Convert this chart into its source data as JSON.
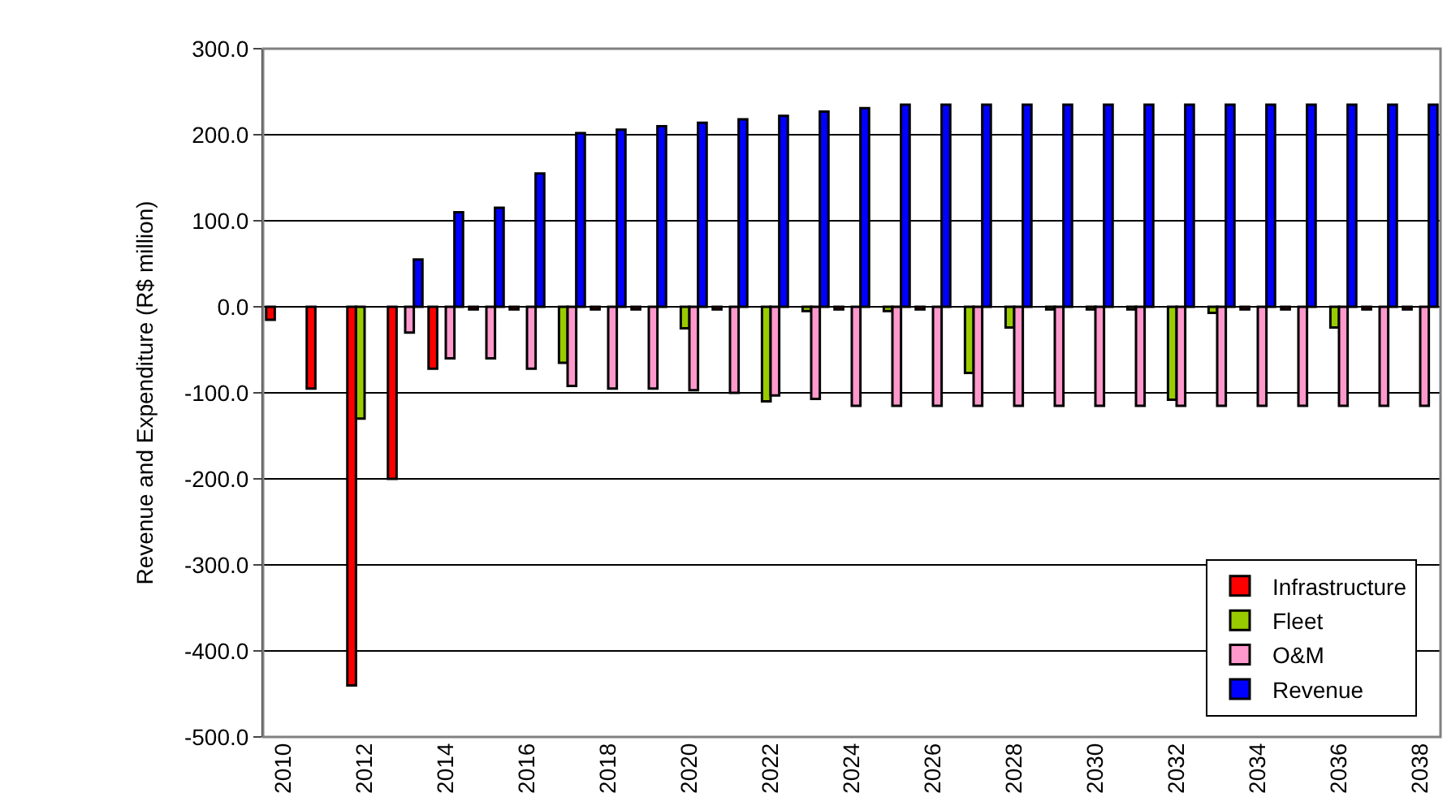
{
  "chart_data": {
    "type": "bar",
    "ylabel": "Revenue and Expenditure (R$ million)",
    "categories": [
      "2010",
      null,
      "2012",
      null,
      "2014",
      null,
      "2016",
      null,
      "2018",
      null,
      "2020",
      null,
      "2022",
      null,
      "2024",
      null,
      "2026",
      null,
      "2028",
      null,
      "2030",
      null,
      "2032",
      null,
      "2034",
      null,
      "2036",
      null,
      "2038"
    ],
    "series": [
      {
        "name": "Infrastructure",
        "color": "#ff0000",
        "values": [
          -15,
          -95,
          -440,
          -200,
          -72,
          -3,
          -3,
          null,
          -3,
          -3,
          null,
          -3,
          null,
          null,
          -3,
          null,
          -3,
          null,
          null,
          null,
          null,
          null,
          null,
          null,
          -3,
          -3,
          null,
          -3,
          -3
        ]
      },
      {
        "name": "Fleet",
        "color": "#99cc00",
        "values": [
          null,
          null,
          -130,
          null,
          null,
          null,
          null,
          -65,
          null,
          null,
          -25,
          null,
          -110,
          -5,
          null,
          -5,
          null,
          -77,
          -24,
          -3,
          -3,
          -3,
          -108,
          -7,
          null,
          null,
          -24,
          null,
          null
        ]
      },
      {
        "name": "O&M",
        "color": "#ff99cc",
        "values": [
          null,
          null,
          null,
          -30,
          -60,
          -60,
          -72,
          -92,
          -95,
          -95,
          -97,
          -100,
          -103,
          -107,
          -115,
          -115,
          -115,
          -115,
          -115,
          -115,
          -115,
          -115,
          -115,
          -115,
          -115,
          -115,
          -115,
          -115,
          -115
        ]
      },
      {
        "name": "Revenue",
        "color": "#0000ff",
        "values": [
          null,
          null,
          null,
          55,
          110,
          115,
          155,
          202,
          206,
          210,
          214,
          218,
          222,
          227,
          231,
          235,
          235,
          235,
          235,
          235,
          235,
          235,
          235,
          235,
          235,
          235,
          235,
          235,
          235
        ]
      }
    ],
    "ylim": [
      -500,
      300
    ],
    "yticks": [
      {
        "value": -500,
        "label": "-500.0"
      },
      {
        "value": -400,
        "label": "-400.0"
      },
      {
        "value": -300,
        "label": "-300.0"
      },
      {
        "value": -200,
        "label": "-200.0"
      },
      {
        "value": -100,
        "label": "-100.0"
      },
      {
        "value": 0,
        "label": "0.0"
      },
      {
        "value": 100,
        "label": "100.0"
      },
      {
        "value": 200,
        "label": "200.0"
      },
      {
        "value": 300,
        "label": "300.0"
      }
    ],
    "grid": "y",
    "legend": "bottom right"
  }
}
